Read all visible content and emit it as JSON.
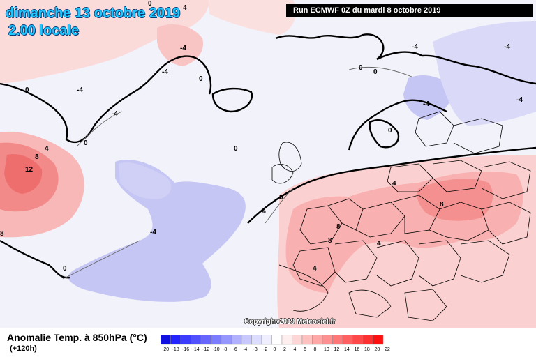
{
  "header": {
    "date_line": "dimanche 13 octobre 2019",
    "time_line": "2.00 locale",
    "run_info": "Run ECMWF 0Z du mardi 8 octobre 2019"
  },
  "footer": {
    "variable": "Anomalie Temp. à 850hPa (°C)",
    "lead_time": "(+120h)",
    "copyright": "Copyright 2019 Meteociel.fr"
  },
  "legend": {
    "ticks": [
      "-20",
      "-18",
      "-16",
      "-14",
      "-12",
      "-10",
      "-8",
      "-6",
      "-4",
      "-3",
      "-2",
      "0",
      "2",
      "4",
      "6",
      "8",
      "10",
      "12",
      "14",
      "16",
      "18",
      "20",
      "22"
    ],
    "colors": [
      "#1010e0",
      "#2424ff",
      "#3c3cff",
      "#5050ff",
      "#6666ff",
      "#7c7cff",
      "#9696ff",
      "#b0b0ff",
      "#c8c8ff",
      "#dcdcff",
      "#eeeeff",
      "#ffffff",
      "#ffeeee",
      "#ffd6d6",
      "#ffc0c0",
      "#ffa8a8",
      "#ff9090",
      "#ff7878",
      "#ff6060",
      "#ff4848",
      "#ff3030",
      "#ff1010"
    ],
    "neutral_color": "#f0f0f8"
  },
  "contour_labels": [
    "0",
    "0",
    "0",
    "0",
    "0",
    "0",
    "0",
    "0",
    "0",
    "0",
    "-4",
    "-4",
    "-4",
    "-4",
    "-4",
    "-4",
    "-4",
    "-4",
    "-4",
    "-4",
    "4",
    "4",
    "4",
    "4",
    "4",
    "8",
    "8",
    "8",
    "8",
    "8",
    "12"
  ]
}
